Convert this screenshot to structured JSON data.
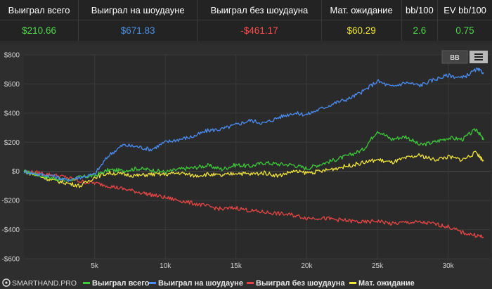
{
  "stats": {
    "headers": [
      "Выиграл всего",
      "Выиграл на шоудауне",
      "Выиграл без шоудауна",
      "Мат. ожидание",
      "bb/100",
      "EV bb/100"
    ],
    "values": [
      "$210.66",
      "$671.83",
      "-$461.17",
      "$60.29",
      "2.6",
      "0.75"
    ],
    "value_colors": [
      "#4fd84a",
      "#4a90e2",
      "#ff4c4c",
      "#f2e63a",
      "#4fd84a",
      "#4fd84a"
    ]
  },
  "toolbar": {
    "bb_label": "BB"
  },
  "brand": {
    "name": "SMARTHAND.PRO"
  },
  "chart_data": {
    "type": "line",
    "xlim": [
      0,
      33000
    ],
    "ylim": [
      -600,
      800
    ],
    "x_ticks": [
      5000,
      10000,
      15000,
      20000,
      25000,
      30000
    ],
    "x_tick_labels": [
      "5k",
      "10k",
      "15k",
      "20k",
      "25k",
      "30k"
    ],
    "y_ticks": [
      800,
      600,
      400,
      200,
      0,
      -200,
      -400,
      -600
    ],
    "y_tick_labels": [
      "$800",
      "$600",
      "$400",
      "$200",
      "$0",
      "-$200",
      "-$400",
      "-$600"
    ],
    "grid": true,
    "legend_position": "bottom",
    "series": [
      {
        "name": "Выиграл всего",
        "color": "#3ec93a",
        "x": [
          0,
          1000,
          2000,
          3000,
          4000,
          5000,
          6000,
          7000,
          8000,
          9000,
          10000,
          11000,
          12000,
          13000,
          14000,
          15000,
          16000,
          17000,
          18000,
          19000,
          20000,
          21000,
          22000,
          23000,
          24000,
          25000,
          26000,
          27000,
          28000,
          29000,
          30000,
          31000,
          32000,
          32500
        ],
        "y": [
          0,
          -25,
          -45,
          -65,
          -40,
          -30,
          10,
          5,
          20,
          10,
          -5,
          15,
          25,
          40,
          15,
          45,
          35,
          60,
          50,
          45,
          20,
          50,
          80,
          110,
          150,
          280,
          220,
          240,
          180,
          200,
          230,
          220,
          290,
          215
        ]
      },
      {
        "name": "Выиграл на шоудауне",
        "color": "#4a8cf0",
        "x": [
          0,
          1000,
          2000,
          3000,
          4000,
          5000,
          6000,
          7000,
          8000,
          9000,
          10000,
          11000,
          12000,
          13000,
          14000,
          15000,
          16000,
          17000,
          18000,
          19000,
          20000,
          21000,
          22000,
          23000,
          24000,
          25000,
          26000,
          27000,
          28000,
          29000,
          30000,
          31000,
          32000,
          32500
        ],
        "y": [
          0,
          -20,
          -30,
          -60,
          -40,
          -20,
          110,
          180,
          170,
          150,
          200,
          220,
          240,
          280,
          290,
          320,
          350,
          330,
          370,
          400,
          390,
          430,
          470,
          500,
          550,
          620,
          580,
          610,
          590,
          630,
          660,
          640,
          700,
          680
        ]
      },
      {
        "name": "Выиграл без шоудауна",
        "color": "#e84444",
        "x": [
          0,
          1000,
          2000,
          3000,
          4000,
          5000,
          6000,
          7000,
          8000,
          9000,
          10000,
          11000,
          12000,
          13000,
          14000,
          15000,
          16000,
          17000,
          18000,
          19000,
          20000,
          21000,
          22000,
          23000,
          24000,
          25000,
          26000,
          27000,
          28000,
          29000,
          30000,
          31000,
          32000,
          32500
        ],
        "y": [
          0,
          -10,
          -25,
          -40,
          -70,
          -80,
          -100,
          -120,
          -140,
          -160,
          -180,
          -200,
          -220,
          -240,
          -260,
          -250,
          -270,
          -280,
          -290,
          -300,
          -320,
          -320,
          -330,
          -340,
          -350,
          -340,
          -360,
          -350,
          -350,
          -360,
          -380,
          -420,
          -440,
          -450
        ]
      },
      {
        "name": "Мат. ожидание",
        "color": "#f0e33a",
        "x": [
          0,
          1000,
          2000,
          3000,
          4000,
          5000,
          6000,
          7000,
          8000,
          9000,
          10000,
          11000,
          12000,
          13000,
          14000,
          15000,
          16000,
          17000,
          18000,
          19000,
          20000,
          21000,
          22000,
          23000,
          24000,
          25000,
          26000,
          27000,
          28000,
          29000,
          30000,
          31000,
          32000,
          32500
        ],
        "y": [
          0,
          -30,
          -60,
          -80,
          -100,
          -40,
          -10,
          -20,
          -30,
          -20,
          -20,
          -10,
          -30,
          -20,
          -30,
          -10,
          -20,
          -10,
          -30,
          0,
          -10,
          0,
          20,
          40,
          60,
          80,
          60,
          90,
          110,
          80,
          100,
          80,
          130,
          70
        ]
      }
    ]
  }
}
